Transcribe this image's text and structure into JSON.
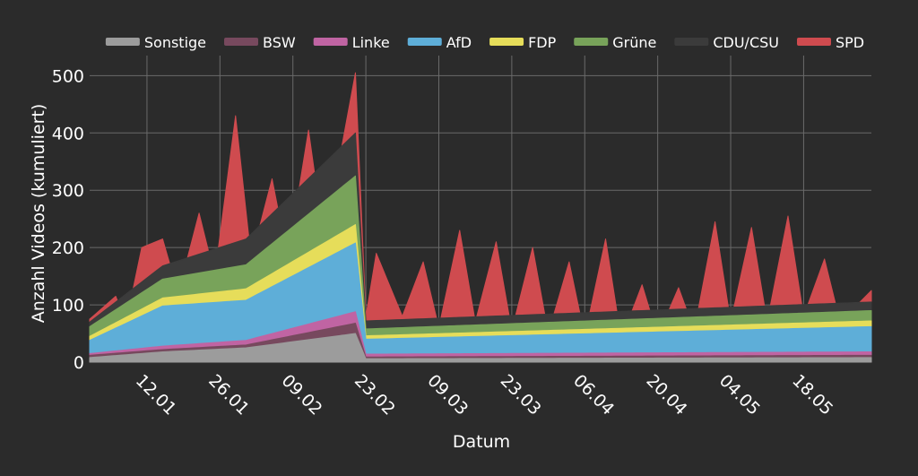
{
  "colors": {
    "background": "#2b2b2b",
    "grid": "#6a6a6a",
    "text": "#ffffff"
  },
  "chart_data": {
    "type": "area",
    "stacked": true,
    "xlabel": "Datum",
    "ylabel": "Anzahl Videos (kumuliert)",
    "x_start": "2025-01-01",
    "x_end": "2025-05-31",
    "x_ticks": [
      {
        "date": "2025-01-12",
        "label": "12.01"
      },
      {
        "date": "2025-01-26",
        "label": "26.01"
      },
      {
        "date": "2025-02-09",
        "label": "09.02"
      },
      {
        "date": "2025-02-23",
        "label": "23.02"
      },
      {
        "date": "2025-03-09",
        "label": "09.03"
      },
      {
        "date": "2025-03-23",
        "label": "23.03"
      },
      {
        "date": "2025-04-06",
        "label": "06.04"
      },
      {
        "date": "2025-04-20",
        "label": "20.04"
      },
      {
        "date": "2025-05-04",
        "label": "04.05"
      },
      {
        "date": "2025-05-18",
        "label": "18.05"
      }
    ],
    "y_ticks": [
      0,
      100,
      200,
      300,
      400,
      500
    ],
    "ylim": [
      0,
      535
    ],
    "legend_position": "top",
    "grid": true,
    "series": [
      {
        "name": "Sonstige",
        "color": "#9c9c9c",
        "total": [
          {
            "date": "2025-01-01",
            "value": 8
          },
          {
            "date": "2025-01-15",
            "value": 18
          },
          {
            "date": "2025-01-31",
            "value": 25
          },
          {
            "date": "2025-02-21",
            "value": 50
          },
          {
            "date": "2025-02-23",
            "value": 6
          },
          {
            "date": "2025-05-31",
            "value": 8
          }
        ]
      },
      {
        "name": "BSW",
        "color": "#77495e",
        "total": [
          {
            "date": "2025-01-01",
            "value": 12
          },
          {
            "date": "2025-01-15",
            "value": 22
          },
          {
            "date": "2025-01-31",
            "value": 30
          },
          {
            "date": "2025-02-21",
            "value": 68
          },
          {
            "date": "2025-02-23",
            "value": 9
          },
          {
            "date": "2025-05-31",
            "value": 12
          }
        ]
      },
      {
        "name": "Linke",
        "color": "#c064a3",
        "total": [
          {
            "date": "2025-01-01",
            "value": 15
          },
          {
            "date": "2025-01-15",
            "value": 28
          },
          {
            "date": "2025-01-31",
            "value": 38
          },
          {
            "date": "2025-02-21",
            "value": 88
          },
          {
            "date": "2025-02-23",
            "value": 14
          },
          {
            "date": "2025-05-31",
            "value": 18
          }
        ]
      },
      {
        "name": "AfD",
        "color": "#5eaed8",
        "total": [
          {
            "date": "2025-01-01",
            "value": 38
          },
          {
            "date": "2025-01-15",
            "value": 98
          },
          {
            "date": "2025-01-31",
            "value": 108
          },
          {
            "date": "2025-02-21",
            "value": 208
          },
          {
            "date": "2025-02-23",
            "value": 40
          },
          {
            "date": "2025-05-31",
            "value": 62
          }
        ]
      },
      {
        "name": "FDP",
        "color": "#e6dd5a",
        "total": [
          {
            "date": "2025-01-01",
            "value": 45
          },
          {
            "date": "2025-01-15",
            "value": 112
          },
          {
            "date": "2025-01-31",
            "value": 128
          },
          {
            "date": "2025-02-21",
            "value": 240
          },
          {
            "date": "2025-02-23",
            "value": 46
          },
          {
            "date": "2025-05-31",
            "value": 72
          }
        ]
      },
      {
        "name": "Grüne",
        "color": "#78a35a",
        "total": [
          {
            "date": "2025-01-01",
            "value": 62
          },
          {
            "date": "2025-01-15",
            "value": 145
          },
          {
            "date": "2025-01-31",
            "value": 170
          },
          {
            "date": "2025-02-21",
            "value": 325
          },
          {
            "date": "2025-02-23",
            "value": 58
          },
          {
            "date": "2025-05-31",
            "value": 90
          }
        ]
      },
      {
        "name": "CDU/CSU",
        "color": "#3b3b3b",
        "total": [
          {
            "date": "2025-01-01",
            "value": 70
          },
          {
            "date": "2025-01-15",
            "value": 168
          },
          {
            "date": "2025-01-31",
            "value": 215
          },
          {
            "date": "2025-02-21",
            "value": 400
          },
          {
            "date": "2025-02-23",
            "value": 72
          },
          {
            "date": "2025-05-31",
            "value": 105
          }
        ]
      },
      {
        "name": "SPD",
        "color": "#cf4b4f",
        "total": [
          {
            "date": "2025-01-01",
            "value": 75
          },
          {
            "date": "2025-01-06",
            "value": 115
          },
          {
            "date": "2025-01-08",
            "value": 70
          },
          {
            "date": "2025-01-11",
            "value": 200
          },
          {
            "date": "2025-01-15",
            "value": 215
          },
          {
            "date": "2025-01-18",
            "value": 120
          },
          {
            "date": "2025-01-22",
            "value": 260
          },
          {
            "date": "2025-01-25",
            "value": 150
          },
          {
            "date": "2025-01-29",
            "value": 430
          },
          {
            "date": "2025-02-01",
            "value": 180
          },
          {
            "date": "2025-02-05",
            "value": 320
          },
          {
            "date": "2025-02-08",
            "value": 180
          },
          {
            "date": "2025-02-12",
            "value": 405
          },
          {
            "date": "2025-02-15",
            "value": 210
          },
          {
            "date": "2025-02-21",
            "value": 505
          },
          {
            "date": "2025-02-23",
            "value": 80
          },
          {
            "date": "2025-02-25",
            "value": 190
          },
          {
            "date": "2025-03-02",
            "value": 80
          },
          {
            "date": "2025-03-06",
            "value": 175
          },
          {
            "date": "2025-03-09",
            "value": 60
          },
          {
            "date": "2025-03-13",
            "value": 230
          },
          {
            "date": "2025-03-16",
            "value": 70
          },
          {
            "date": "2025-03-20",
            "value": 210
          },
          {
            "date": "2025-03-23",
            "value": 55
          },
          {
            "date": "2025-03-27",
            "value": 200
          },
          {
            "date": "2025-03-30",
            "value": 50
          },
          {
            "date": "2025-04-03",
            "value": 175
          },
          {
            "date": "2025-04-06",
            "value": 45
          },
          {
            "date": "2025-04-10",
            "value": 215
          },
          {
            "date": "2025-04-13",
            "value": 40
          },
          {
            "date": "2025-04-17",
            "value": 135
          },
          {
            "date": "2025-04-20",
            "value": 45
          },
          {
            "date": "2025-04-24",
            "value": 130
          },
          {
            "date": "2025-04-27",
            "value": 55
          },
          {
            "date": "2025-05-01",
            "value": 245
          },
          {
            "date": "2025-05-04",
            "value": 70
          },
          {
            "date": "2025-05-08",
            "value": 235
          },
          {
            "date": "2025-05-11",
            "value": 70
          },
          {
            "date": "2025-05-15",
            "value": 255
          },
          {
            "date": "2025-05-18",
            "value": 80
          },
          {
            "date": "2025-05-22",
            "value": 180
          },
          {
            "date": "2025-05-25",
            "value": 70
          },
          {
            "date": "2025-05-31",
            "value": 125
          }
        ]
      }
    ]
  }
}
